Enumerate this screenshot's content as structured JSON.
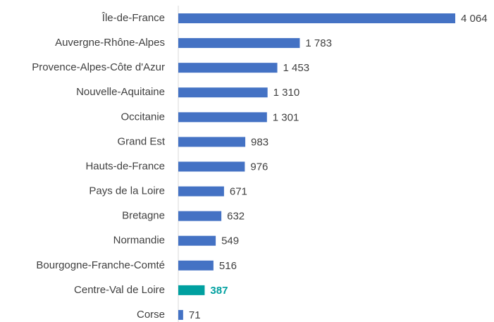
{
  "chart_data": {
    "type": "barh",
    "categories": [
      "Île-de-France",
      "Auvergne-Rhône-Alpes",
      "Provence-Alpes-Côte d'Azur",
      "Nouvelle-Aquitaine",
      "Occitanie",
      "Grand Est",
      "Hauts-de-France",
      "Pays de la Loire",
      "Bretagne",
      "Normandie",
      "Bourgogne-Franche-Comté",
      "Centre-Val de Loire",
      "Corse"
    ],
    "values": [
      4064,
      1783,
      1453,
      1310,
      1301,
      983,
      976,
      671,
      632,
      549,
      516,
      387,
      71
    ],
    "value_labels": [
      "4 064",
      "1 783",
      "1 453",
      "1 310",
      "1 301",
      "983",
      "976",
      "671",
      "632",
      "549",
      "516",
      "387",
      "71"
    ],
    "color": "#4472c4",
    "highlight_index": 11,
    "highlight_color": "#00a0a0"
  }
}
